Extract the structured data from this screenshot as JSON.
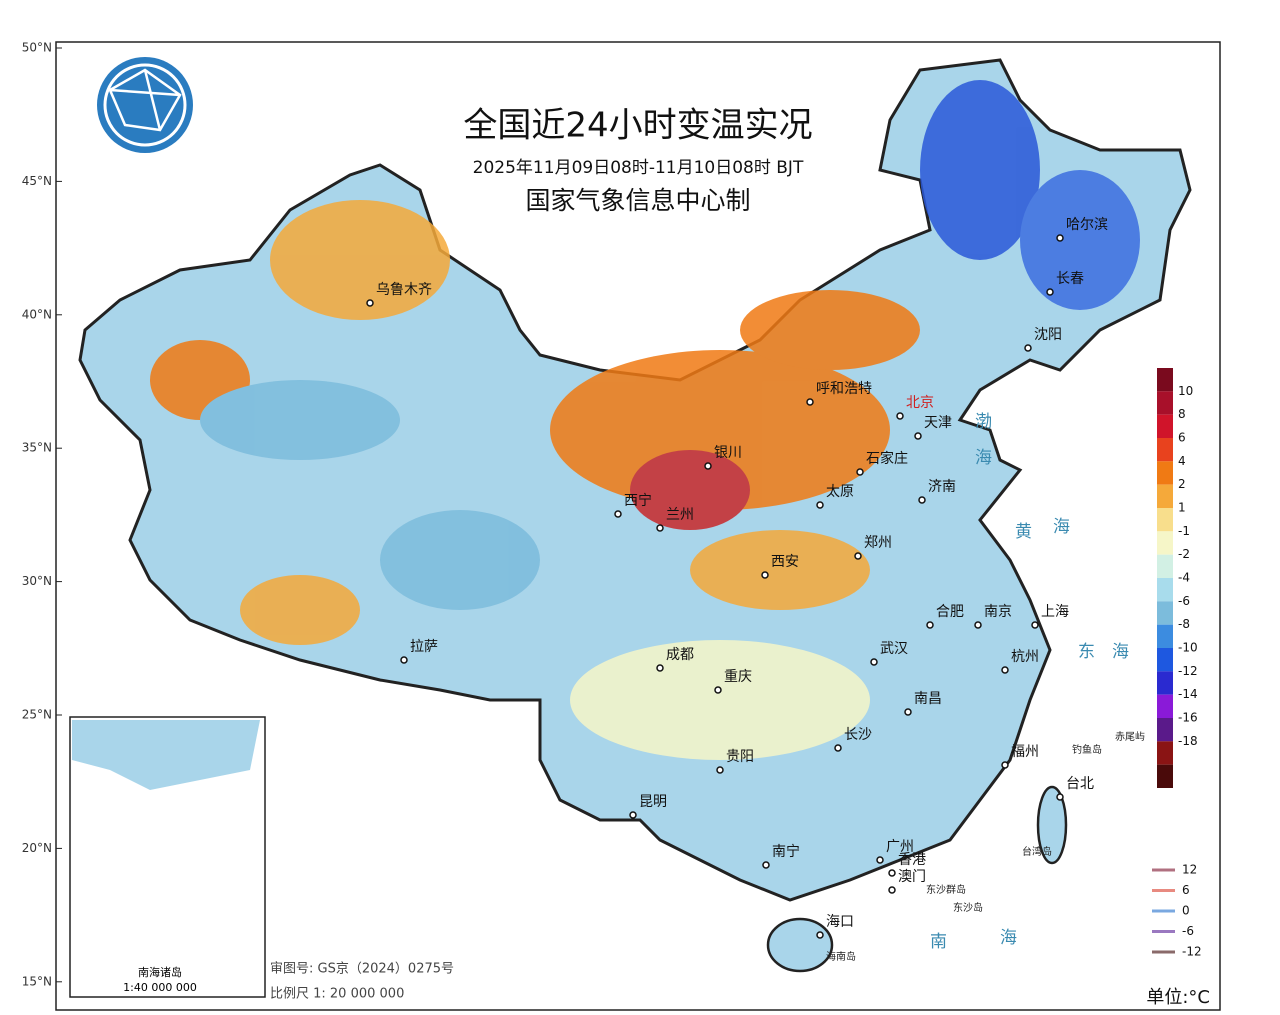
{
  "title": "全国近24小时变温实况",
  "subtitle": "2025年11月09日08时-11月10日08时 BJT",
  "producer": "国家气象信息中心制",
  "lat_labels": [
    "50°N",
    "45°N",
    "40°N",
    "35°N",
    "30°N",
    "25°N",
    "20°N",
    "15°N"
  ],
  "cities": [
    "乌鲁木齐",
    "呼和浩特",
    "哈尔滨",
    "长春",
    "沈阳",
    "北京",
    "天津",
    "石家庄",
    "银川",
    "西宁",
    "兰州",
    "太原",
    "济南",
    "西安",
    "郑州",
    "合肥",
    "南京",
    "上海",
    "杭州",
    "成都",
    "拉萨",
    "重庆",
    "武汉",
    "南昌",
    "长沙",
    "贵阳",
    "昆明",
    "福州",
    "台北",
    "广州",
    "南宁",
    "香港",
    "澳门",
    "海口"
  ],
  "seas": [
    "渤",
    "海",
    "黄",
    "海",
    "东",
    "海",
    "南",
    "海"
  ],
  "islands": [
    "钓鱼岛",
    "赤尾屿",
    "台湾岛",
    "东沙群岛",
    "东沙岛",
    "海南岛"
  ],
  "legend": {
    "colors": [
      "#7a0a1e",
      "#a8102a",
      "#d0142a",
      "#e8421e",
      "#f07a14",
      "#f5a93a",
      "#f8de8c",
      "#f6f6c8",
      "#d2f0e4",
      "#a8dcec",
      "#7cbcdc",
      "#3c8ce0",
      "#1e58e0",
      "#2a2ad0",
      "#8a1ad8",
      "#5a1a8a",
      "#8a1414",
      "#4a0a0a"
    ],
    "labels": [
      10,
      8,
      6,
      4,
      2,
      1,
      -1,
      -2,
      -4,
      -6,
      -8,
      -10,
      -12,
      -14,
      -16,
      -18
    ]
  },
  "contour_legend": {
    "colors": [
      "#b07080",
      "#e88a80",
      "#7aa8e0",
      "#9a78c0",
      "#8a6a6a"
    ],
    "labels": [
      12,
      6,
      0,
      -6,
      -12
    ]
  },
  "unit": "单位:°C",
  "inset": {
    "title": "南海诸岛",
    "scale": "1:40 000 000"
  },
  "review": "审图号: GS京（2024）0275号",
  "scale": "比例尺 1: 20 000 000"
}
